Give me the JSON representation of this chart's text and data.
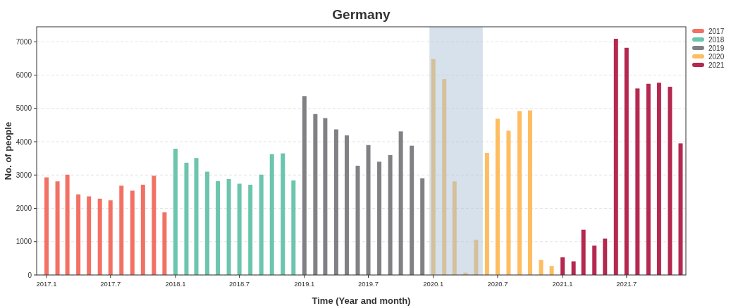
{
  "chart_data": {
    "type": "bar",
    "title": "Germany",
    "xlabel": "Time (Year and month)",
    "ylabel": "No. of people",
    "xlim": [
      "2016-12-04",
      "2021-12-16"
    ],
    "xticks": [
      {
        "value": "2017-01",
        "label": "2017.1"
      },
      {
        "value": "2017-07",
        "label": "2017.7"
      },
      {
        "value": "2018-01",
        "label": "2018.1"
      },
      {
        "value": "2018-07",
        "label": "2018.7"
      },
      {
        "value": "2019-01",
        "label": "2019.1"
      },
      {
        "value": "2019-07",
        "label": "2019.7"
      },
      {
        "value": "2020-01",
        "label": "2020.1"
      },
      {
        "value": "2020-07",
        "label": "2020.7"
      },
      {
        "value": "2021-01",
        "label": "2021.1"
      },
      {
        "value": "2021-07",
        "label": "2021.7"
      }
    ],
    "ylim": [
      0,
      7450
    ],
    "yticks": [
      0,
      1000,
      2000,
      3000,
      4000,
      5000,
      6000,
      7000
    ],
    "grid": "y",
    "legend": "top right",
    "bands": [
      {
        "axis": "x",
        "from": "2019-12-21",
        "to": "2020-05-20",
        "color": "#aec3d8"
      }
    ],
    "series": [
      {
        "name": "2017",
        "color": "#f27164",
        "x": [
          "2017-01",
          "2017-02",
          "2017-03",
          "2017-04",
          "2017-05",
          "2017-06",
          "2017-07",
          "2017-08",
          "2017-09",
          "2017-10",
          "2017-11",
          "2017-12"
        ],
        "values": [
          2930,
          2810,
          3010,
          2420,
          2360,
          2290,
          2240,
          2680,
          2530,
          2710,
          2980,
          1880
        ]
      },
      {
        "name": "2018",
        "color": "#6cc5ad",
        "x": [
          "2018-01",
          "2018-02",
          "2018-03",
          "2018-04",
          "2018-05",
          "2018-06",
          "2018-07",
          "2018-08",
          "2018-09",
          "2018-10",
          "2018-11",
          "2018-12"
        ],
        "values": [
          3790,
          3370,
          3510,
          3100,
          2820,
          2880,
          2740,
          2710,
          3010,
          3630,
          3650,
          2840
        ]
      },
      {
        "name": "2019",
        "color": "#808085",
        "x": [
          "2019-01",
          "2019-02",
          "2019-03",
          "2019-04",
          "2019-05",
          "2019-06",
          "2019-07",
          "2019-08",
          "2019-09",
          "2019-10",
          "2019-11",
          "2019-12"
        ],
        "values": [
          5370,
          4830,
          4710,
          4370,
          4190,
          3280,
          3900,
          3400,
          3600,
          4310,
          3880,
          2900
        ]
      },
      {
        "name": "2020",
        "color": "#fdbd60",
        "x": [
          "2020-01",
          "2020-02",
          "2020-03",
          "2020-04",
          "2020-05",
          "2020-06",
          "2020-07",
          "2020-08",
          "2020-09",
          "2020-10",
          "2020-11",
          "2020-12"
        ],
        "values": [
          6480,
          5880,
          2810,
          70,
          1060,
          3660,
          4690,
          4330,
          4920,
          4940,
          450,
          270
        ]
      },
      {
        "name": "2021",
        "color": "#b5284f",
        "x": [
          "2021-01",
          "2021-02",
          "2021-03",
          "2021-04",
          "2021-05",
          "2021-06",
          "2021-07",
          "2021-08",
          "2021-09",
          "2021-10",
          "2021-11",
          "2021-12"
        ],
        "values": [
          530,
          410,
          1360,
          880,
          1090,
          7090,
          6820,
          5600,
          5740,
          5770,
          5650,
          3950
        ]
      }
    ]
  }
}
